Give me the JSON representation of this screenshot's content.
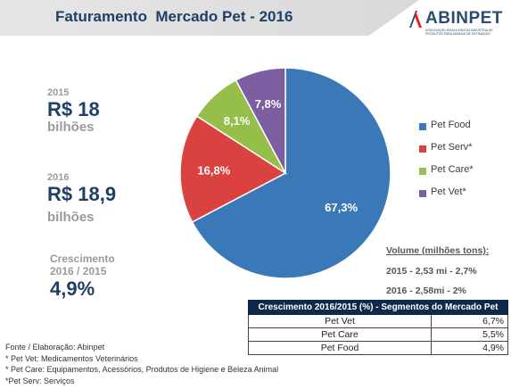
{
  "header": {
    "title": "Faturamento  Mercado Pet - 2016",
    "logo_text": "ABINPET",
    "logo_subtitle": "ASSOCIAÇÃO BRASILEIRA DA INDÚSTRIA DE PRODUTOS PARA ANIMAIS DE ESTIMAÇÃO"
  },
  "left_panel": {
    "y2015_label": "2015",
    "y2015_value": "R$ 18",
    "y2015_unit": "bilhões",
    "y2016_label": "2016",
    "y2016_value": "R$ 18,9",
    "y2016_unit": "bilhões",
    "growth_label_1": "Crescimento",
    "growth_label_2": "2016 / 2015",
    "growth_value": "4,9%"
  },
  "chart_data": {
    "type": "pie",
    "title": "Faturamento  Mercado Pet - 2016",
    "slices": [
      {
        "label": "Pet Food",
        "value": 67.3,
        "display": "67,3%",
        "color": "#3a78b7"
      },
      {
        "label": "Pet Serv*",
        "value": 16.8,
        "display": "16,8%",
        "color": "#d9423f"
      },
      {
        "label": "Pet Care*",
        "value": 8.1,
        "display": "8,1%",
        "color": "#96be4a"
      },
      {
        "label": "Pet Vet*",
        "value": 7.8,
        "display": "7,8%",
        "color": "#7d5ea0"
      }
    ],
    "legend_position": "right"
  },
  "volume": {
    "title": "Volume (milhões tons):",
    "line_2015": "2015 - 2,53 mi - 2,7%",
    "line_2016": "2016 - 2,58mi - 2%"
  },
  "segments_table": {
    "header": "Crescimento 2016/2015 (%) - Segmentos do Mercado Pet",
    "rows": [
      {
        "segment": "Pet Vet",
        "value": "6,7%"
      },
      {
        "segment": "Pet Care",
        "value": "5,5%"
      },
      {
        "segment": "Pet Food",
        "value": "4,9%"
      }
    ]
  },
  "footer": {
    "source": "Fonte /  Elaboração: Abinpet",
    "note_1": "* Pet Vet: Medicamentos Veterinários",
    "note_2": "* Pet Care: Equipamentos, Acessórios, Produtos de Higiene e Beleza Animal",
    "note_3": "*Pet Serv: Serviços"
  }
}
